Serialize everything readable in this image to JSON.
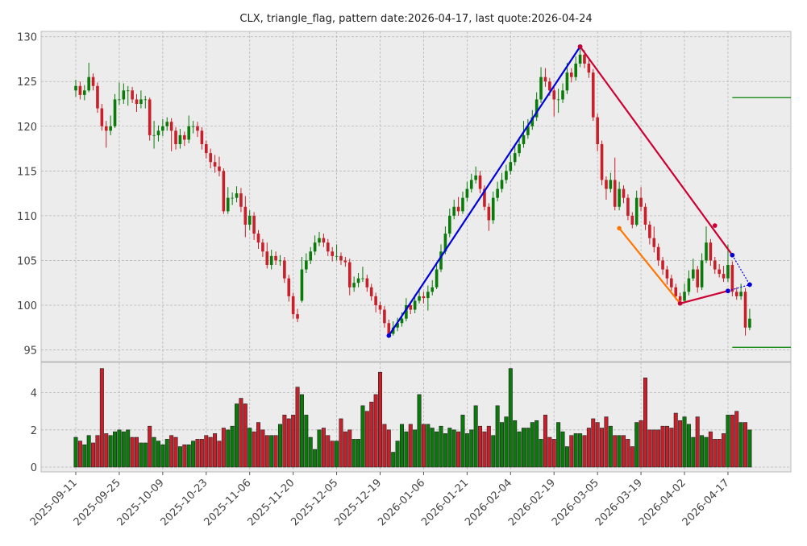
{
  "chart_data": {
    "type": "candlestick",
    "title": "CLX, triangle_flag, pattern date:2026-04-17, last quote:2026-04-24",
    "x": [
      "2025-09-11",
      "2025-09-12",
      "2025-09-15",
      "2025-09-16",
      "2025-09-17",
      "2025-09-18",
      "2025-09-19",
      "2025-09-22",
      "2025-09-23",
      "2025-09-24",
      "2025-09-25",
      "2025-09-26",
      "2025-09-29",
      "2025-09-30",
      "2025-10-01",
      "2025-10-02",
      "2025-10-03",
      "2025-10-06",
      "2025-10-07",
      "2025-10-08",
      "2025-10-09",
      "2025-10-10",
      "2025-10-13",
      "2025-10-14",
      "2025-10-15",
      "2025-10-16",
      "2025-10-17",
      "2025-10-20",
      "2025-10-21",
      "2025-10-22",
      "2025-10-23",
      "2025-10-24",
      "2025-10-27",
      "2025-10-28",
      "2025-10-29",
      "2025-10-30",
      "2025-10-31",
      "2025-11-03",
      "2025-11-04",
      "2025-11-05",
      "2025-11-06",
      "2025-11-07",
      "2025-11-10",
      "2025-11-11",
      "2025-11-12",
      "2025-11-13",
      "2025-11-14",
      "2025-11-17",
      "2025-11-18",
      "2025-11-19",
      "2025-11-20",
      "2025-11-21",
      "2025-11-24",
      "2025-11-25",
      "2025-11-26",
      "2025-11-28",
      "2025-12-01",
      "2025-12-02",
      "2025-12-03",
      "2025-12-04",
      "2025-12-05",
      "2025-12-08",
      "2025-12-09",
      "2025-12-10",
      "2025-12-11",
      "2025-12-12",
      "2025-12-15",
      "2025-12-16",
      "2025-12-17",
      "2025-12-18",
      "2025-12-19",
      "2025-12-22",
      "2025-12-23",
      "2025-12-24",
      "2025-12-26",
      "2025-12-29",
      "2025-12-30",
      "2025-12-31",
      "2026-01-02",
      "2026-01-05",
      "2026-01-06",
      "2026-01-07",
      "2026-01-08",
      "2026-01-09",
      "2026-01-12",
      "2026-01-13",
      "2026-01-14",
      "2026-01-15",
      "2026-01-16",
      "2026-01-20",
      "2026-01-21",
      "2026-01-22",
      "2026-01-23",
      "2026-01-26",
      "2026-01-27",
      "2026-01-28",
      "2026-01-29",
      "2026-01-30",
      "2026-02-02",
      "2026-02-03",
      "2026-02-04",
      "2026-02-05",
      "2026-02-06",
      "2026-02-09",
      "2026-02-10",
      "2026-02-11",
      "2026-02-12",
      "2026-02-13",
      "2026-02-17",
      "2026-02-18",
      "2026-02-19",
      "2026-02-20",
      "2026-02-23",
      "2026-02-24",
      "2026-02-25",
      "2026-02-26",
      "2026-02-27",
      "2026-03-02",
      "2026-03-03",
      "2026-03-04",
      "2026-03-05",
      "2026-03-06",
      "2026-03-09",
      "2026-03-10",
      "2026-03-11",
      "2026-03-12",
      "2026-03-13",
      "2026-03-16",
      "2026-03-17",
      "2026-03-18",
      "2026-03-19",
      "2026-03-20",
      "2026-03-23",
      "2026-03-24",
      "2026-03-25",
      "2026-03-26",
      "2026-03-27",
      "2026-03-30",
      "2026-03-31",
      "2026-04-01",
      "2026-04-02",
      "2026-04-06",
      "2026-04-07",
      "2026-04-08",
      "2026-04-09",
      "2026-04-10",
      "2026-04-13",
      "2026-04-14",
      "2026-04-15",
      "2026-04-16",
      "2026-04-17",
      "2026-04-20",
      "2026-04-21",
      "2026-04-22",
      "2026-04-23",
      "2026-04-24"
    ],
    "ohlc": [
      [
        124,
        125.2,
        123.3,
        124.5
      ],
      [
        124.5,
        125,
        123,
        123.5
      ],
      [
        123.5,
        124.6,
        122.9,
        124
      ],
      [
        124,
        127.1,
        123.8,
        125.5
      ],
      [
        125.5,
        125.9,
        124,
        124.5
      ],
      [
        124.5,
        124.9,
        121.5,
        122
      ],
      [
        122,
        122.5,
        119.5,
        120
      ],
      [
        120,
        120.6,
        117.6,
        119.5
      ],
      [
        119.5,
        121.2,
        119,
        120
      ],
      [
        120,
        123.6,
        119.8,
        123
      ],
      [
        123,
        124.9,
        122.4,
        123
      ],
      [
        123,
        124.8,
        122.5,
        124
      ],
      [
        124,
        124.5,
        122.3,
        124
      ],
      [
        124,
        124.4,
        122.6,
        123
      ],
      [
        123,
        123.6,
        121.6,
        122.5
      ],
      [
        122.5,
        124,
        122,
        123
      ],
      [
        123,
        123.4,
        122,
        123
      ],
      [
        123,
        123.2,
        118.4,
        119
      ],
      [
        119,
        120.6,
        117.5,
        119
      ],
      [
        119,
        120.1,
        118.3,
        119.5
      ],
      [
        119.5,
        120.8,
        118.9,
        120
      ],
      [
        120,
        121,
        119.5,
        120.5
      ],
      [
        120.5,
        120.9,
        117.2,
        119.5
      ],
      [
        119.5,
        119.9,
        117.4,
        118
      ],
      [
        118,
        119.7,
        117.5,
        119
      ],
      [
        119,
        119.4,
        117.8,
        118.5
      ],
      [
        118.5,
        121.2,
        118.1,
        120
      ],
      [
        120,
        120.6,
        119.2,
        120
      ],
      [
        120,
        120.5,
        118.8,
        119.5
      ],
      [
        119.5,
        119.9,
        117.4,
        118
      ],
      [
        118,
        118.4,
        116.4,
        117
      ],
      [
        117,
        117.5,
        115.3,
        116
      ],
      [
        116,
        116.8,
        114.8,
        115.5
      ],
      [
        115.5,
        116.6,
        114.4,
        115
      ],
      [
        115,
        115.3,
        110.2,
        110.5
      ],
      [
        110.5,
        113.2,
        110.2,
        112
      ],
      [
        112,
        112.6,
        111.2,
        112
      ],
      [
        112,
        113.3,
        111.5,
        112.5
      ],
      [
        112.5,
        113.1,
        110.4,
        111
      ],
      [
        111,
        112.2,
        107.6,
        109
      ],
      [
        109,
        110.6,
        108.4,
        110
      ],
      [
        110,
        110.4,
        107.3,
        108
      ],
      [
        108,
        108.4,
        106.3,
        107
      ],
      [
        107,
        107.4,
        105.4,
        106
      ],
      [
        106,
        107,
        104.1,
        104.5
      ],
      [
        104.5,
        106.2,
        104,
        105.5
      ],
      [
        105.5,
        106,
        104.5,
        105
      ],
      [
        105,
        105.6,
        104.4,
        105
      ],
      [
        105,
        105.4,
        102.5,
        103
      ],
      [
        103,
        103.4,
        100.4,
        101
      ],
      [
        101,
        101.4,
        98.5,
        99
      ],
      [
        99,
        99.6,
        98.1,
        98.5
      ],
      [
        100.5,
        105.4,
        100.3,
        104
      ],
      [
        104,
        105.8,
        103.6,
        105
      ],
      [
        105,
        106.5,
        104.6,
        106
      ],
      [
        106,
        107.8,
        105.6,
        107
      ],
      [
        107,
        108.2,
        106.6,
        107.5
      ],
      [
        107.5,
        108,
        106.5,
        107
      ],
      [
        107,
        107.4,
        105.5,
        106
      ],
      [
        106,
        106.5,
        104.9,
        105.5
      ],
      [
        105.5,
        106.8,
        105,
        105.5
      ],
      [
        105.5,
        105.9,
        104.5,
        105
      ],
      [
        105,
        105.4,
        104.3,
        104.8
      ],
      [
        104.8,
        105.2,
        101.1,
        102
      ],
      [
        102,
        103.2,
        101.5,
        102.5
      ],
      [
        102.5,
        103.6,
        102,
        103
      ],
      [
        103,
        104.3,
        102.6,
        103
      ],
      [
        103,
        103.4,
        101.5,
        102
      ],
      [
        102,
        102.4,
        100.5,
        101
      ],
      [
        101,
        101.4,
        99.2,
        100
      ],
      [
        100,
        100.4,
        99,
        99.5
      ],
      [
        99.5,
        99.9,
        97.5,
        98
      ],
      [
        98,
        98.4,
        96.5,
        96.8
      ],
      [
        96.8,
        98.2,
        96.6,
        97.5
      ],
      [
        97.5,
        98.6,
        97.1,
        98
      ],
      [
        98,
        99.2,
        97.6,
        98.5
      ],
      [
        98.5,
        100.8,
        98.2,
        100
      ],
      [
        100,
        100.4,
        99,
        99.5
      ],
      [
        99.5,
        101.2,
        99.1,
        100.5
      ],
      [
        100.5,
        101.8,
        100.2,
        101
      ],
      [
        101,
        101.5,
        100.2,
        100.8
      ],
      [
        100.8,
        102.2,
        99.4,
        101.5
      ],
      [
        101.5,
        102.8,
        101.1,
        102
      ],
      [
        102,
        104.7,
        101.8,
        104
      ],
      [
        104,
        106.8,
        103.7,
        106
      ],
      [
        106,
        108.8,
        105.7,
        108
      ],
      [
        108,
        110.8,
        107.6,
        110
      ],
      [
        110,
        111.8,
        109.6,
        111
      ],
      [
        111,
        112.1,
        110,
        110.5
      ],
      [
        110.5,
        112.7,
        110.2,
        112
      ],
      [
        112,
        113.8,
        111.6,
        113
      ],
      [
        113,
        114.7,
        112.6,
        114
      ],
      [
        114,
        115.5,
        113.6,
        114.5
      ],
      [
        114.5,
        115,
        112.5,
        113
      ],
      [
        113,
        113.4,
        110.6,
        111
      ],
      [
        111,
        111.4,
        108.3,
        109.5
      ],
      [
        109.5,
        112.7,
        109.1,
        112
      ],
      [
        112,
        113.8,
        111.6,
        113
      ],
      [
        113,
        114.8,
        112.6,
        114
      ],
      [
        114,
        115.7,
        113.6,
        115
      ],
      [
        115,
        116.8,
        114.6,
        116
      ],
      [
        116,
        117.8,
        115.6,
        117
      ],
      [
        117,
        118.8,
        116.6,
        118
      ],
      [
        118,
        120.6,
        117.6,
        119
      ],
      [
        119,
        120.8,
        118.6,
        120
      ],
      [
        120,
        121.8,
        119.6,
        121
      ],
      [
        121,
        123.8,
        120.6,
        123
      ],
      [
        123,
        126.6,
        122.6,
        125.5
      ],
      [
        125.5,
        126.5,
        124.4,
        125
      ],
      [
        125,
        125.4,
        123.4,
        124
      ],
      [
        124,
        124.5,
        121.1,
        123
      ],
      [
        123,
        124.2,
        121.5,
        123
      ],
      [
        123,
        124.8,
        122.6,
        124
      ],
      [
        124,
        127.1,
        123.6,
        126
      ],
      [
        126,
        126.5,
        124.9,
        125.5
      ],
      [
        125.5,
        127.8,
        125.1,
        127
      ],
      [
        127,
        128.9,
        126.6,
        128
      ],
      [
        128,
        128.5,
        126.5,
        127
      ],
      [
        127,
        127.4,
        125.4,
        126
      ],
      [
        126,
        126.4,
        120.6,
        121
      ],
      [
        121,
        121.4,
        117.2,
        118
      ],
      [
        118,
        118.4,
        113.4,
        114
      ],
      [
        114,
        114.4,
        111.8,
        113
      ],
      [
        113,
        114.8,
        112.6,
        114
      ],
      [
        114,
        116.5,
        110.6,
        111
      ],
      [
        111,
        113.8,
        110.6,
        113
      ],
      [
        113,
        113.4,
        111.4,
        112
      ],
      [
        112,
        112.4,
        109.5,
        110
      ],
      [
        110,
        110.4,
        108.6,
        109
      ],
      [
        109,
        112.8,
        108.8,
        112
      ],
      [
        112,
        113.2,
        110.5,
        111
      ],
      [
        111,
        111.4,
        108.4,
        109
      ],
      [
        109,
        109.4,
        106.8,
        107.5
      ],
      [
        107.5,
        108.8,
        105.9,
        106.5
      ],
      [
        106.5,
        106.9,
        104.4,
        105
      ],
      [
        105,
        105.4,
        103.4,
        104
      ],
      [
        104,
        104.4,
        102.3,
        103
      ],
      [
        103,
        103.4,
        101.6,
        102
      ],
      [
        102,
        102.4,
        100.6,
        101
      ],
      [
        101,
        101.4,
        100.1,
        100.5
      ],
      [
        100.5,
        102.4,
        100.2,
        101.5
      ],
      [
        101.5,
        103.9,
        101.1,
        103
      ],
      [
        103,
        105.2,
        102.7,
        104
      ],
      [
        104,
        104.4,
        101.4,
        102
      ],
      [
        102,
        105.8,
        101.7,
        105
      ],
      [
        105,
        108.8,
        104.7,
        107
      ],
      [
        107,
        107.4,
        104.4,
        105
      ],
      [
        105,
        105.4,
        103.5,
        104
      ],
      [
        104,
        104.6,
        103.1,
        103.5
      ],
      [
        103.5,
        104.4,
        102.6,
        103
      ],
      [
        103,
        106.8,
        102.6,
        104.5
      ],
      [
        104.5,
        104.9,
        101,
        101.5
      ],
      [
        101.5,
        102,
        100.6,
        101
      ],
      [
        101,
        102.4,
        100.6,
        101.5
      ],
      [
        101.5,
        101.9,
        96.6,
        97.5
      ],
      [
        97.5,
        99.6,
        97.2,
        98.5
      ]
    ],
    "volume": [
      1.6,
      1.4,
      1.2,
      1.7,
      1.3,
      1.7,
      5.3,
      1.8,
      1.7,
      1.9,
      2.0,
      1.9,
      2.0,
      1.6,
      1.6,
      1.3,
      1.3,
      2.2,
      1.6,
      1.4,
      1.2,
      1.5,
      1.7,
      1.6,
      1.1,
      1.2,
      1.2,
      1.4,
      1.5,
      1.5,
      1.7,
      1.6,
      1.8,
      1.4,
      2.1,
      2.0,
      2.2,
      3.4,
      3.7,
      3.4,
      2.1,
      1.9,
      2.4,
      2.0,
      1.7,
      1.7,
      1.7,
      2.3,
      2.8,
      2.6,
      2.8,
      4.3,
      3.9,
      2.8,
      1.6,
      0.95,
      2.0,
      2.1,
      1.7,
      1.4,
      1.4,
      2.6,
      1.9,
      2.0,
      1.5,
      1.5,
      3.3,
      3.0,
      3.5,
      3.9,
      5.1,
      2.3,
      2.0,
      0.8,
      1.4,
      2.3,
      1.9,
      2.3,
      2.0,
      3.9,
      2.3,
      2.3,
      2.1,
      1.9,
      2.2,
      1.8,
      2.1,
      2.0,
      1.9,
      2.8,
      1.8,
      2.0,
      3.3,
      2.2,
      1.9,
      2.2,
      1.7,
      3.3,
      2.4,
      2.7,
      5.3,
      2.5,
      1.9,
      2.1,
      2.1,
      2.4,
      2.5,
      1.5,
      2.8,
      1.6,
      1.5,
      2.4,
      1.9,
      1.1,
      1.7,
      1.8,
      1.8,
      1.7,
      2.1,
      2.6,
      2.4,
      2.1,
      2.7,
      2.2,
      1.7,
      1.7,
      1.7,
      1.5,
      1.1,
      2.4,
      2.5,
      4.8,
      2.0,
      2.0,
      2.0,
      2.2,
      2.2,
      2.1,
      2.9,
      2.5,
      2.7,
      2.3,
      1.6,
      2.7,
      1.7,
      1.6,
      1.9,
      1.5,
      1.5,
      1.8,
      2.8,
      2.8,
      3.0,
      2.4,
      2.4,
      2.0
    ],
    "xticks": [
      "2025-09-11",
      "2025-09-25",
      "2025-10-09",
      "2025-10-23",
      "2025-11-06",
      "2025-11-20",
      "2025-12-05",
      "2025-12-19",
      "2026-01-06",
      "2026-01-21",
      "2026-02-04",
      "2026-02-19",
      "2026-03-05",
      "2026-03-19",
      "2026-04-02",
      "2026-04-17"
    ],
    "ylim": [
      93.7,
      130.6
    ],
    "yticks": [
      95,
      100,
      105,
      110,
      115,
      120,
      125,
      130
    ],
    "volume_ylim": [
      -0.26,
      5.63
    ],
    "volume_yticks": [
      0,
      2,
      4
    ],
    "up_color": "#0a7a0a",
    "down_color": "#c8202a",
    "grid": true,
    "lines": [
      {
        "color": "#0000dd",
        "style": "solid",
        "points": [
          [
            "2025-12-23",
            96.6
          ],
          [
            "2026-02-27",
            128.9
          ]
        ]
      },
      {
        "color": "#cc0033",
        "style": "solid",
        "points": [
          [
            "2026-02-27",
            128.9
          ],
          [
            "2026-04-20",
            105.6
          ]
        ]
      },
      {
        "color": "#0000dd",
        "style": "dotted",
        "points": [
          [
            "2026-04-20",
            105.6
          ],
          [
            "2026-04-24",
            102.3
          ]
        ]
      },
      {
        "color": "#ff7700",
        "style": "solid",
        "points": [
          [
            "2026-03-12",
            108.6
          ],
          [
            "2026-04-01",
            100.2
          ]
        ]
      },
      {
        "color": "#cc0033",
        "style": "solid",
        "points": [
          [
            "2026-04-01",
            100.2
          ],
          [
            "2026-04-17",
            101.6
          ]
        ]
      },
      {
        "color": "#0000dd",
        "style": "dotted",
        "points": [
          [
            "2026-04-17",
            101.6
          ],
          [
            "2026-04-24",
            102.3
          ]
        ]
      }
    ],
    "markers": [
      {
        "color": "#cc0033",
        "point": [
          "2026-04-14",
          108.9
        ]
      }
    ],
    "levels": [
      {
        "color": "#008000",
        "value": 123.2,
        "start": "2026-04-20"
      },
      {
        "color": "#008000",
        "value": 95.3,
        "start": "2026-04-20"
      }
    ]
  }
}
